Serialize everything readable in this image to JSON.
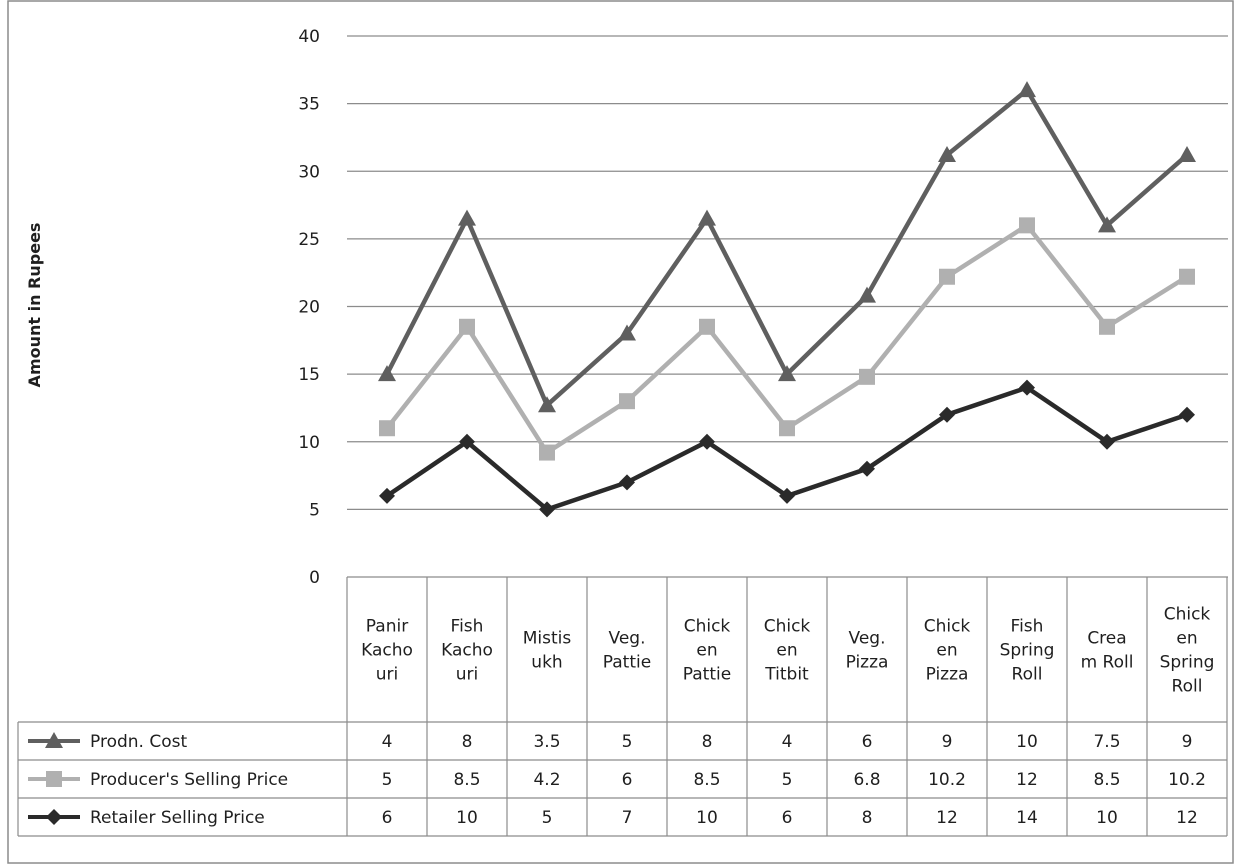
{
  "chart_data": {
    "type": "line",
    "title": "",
    "xlabel": "",
    "ylabel": "Amount in Rupees",
    "ylim": [
      0,
      40
    ],
    "yticks": [
      0,
      5,
      10,
      15,
      20,
      25,
      30,
      35,
      40
    ],
    "grid": true,
    "legend": "data-table",
    "categories": [
      [
        "Panir",
        "Kacho",
        "uri"
      ],
      [
        "Fish",
        "Kacho",
        "uri"
      ],
      [
        "Mistis",
        "ukh"
      ],
      [
        "Veg.",
        "Pattie"
      ],
      [
        "Chick",
        "en",
        "Pattie"
      ],
      [
        "Chick",
        "en",
        "Titbit"
      ],
      [
        "Veg.",
        "Pizza"
      ],
      [
        "Chick",
        "en",
        "Pizza"
      ],
      [
        "Fish",
        "Spring",
        "Roll"
      ],
      [
        "Crea",
        "m Roll"
      ],
      [
        "Chick",
        "en",
        "Spring",
        "Roll"
      ]
    ],
    "series": [
      {
        "name": "Prodn. Cost",
        "marker": "triangle",
        "color": "#5f5f5f",
        "table_values": [
          "4",
          "8",
          "3.5",
          "5",
          "8",
          "4",
          "6",
          "9",
          "10",
          "7.5",
          "9"
        ]
      },
      {
        "name": "Producer's Selling Price",
        "marker": "square",
        "color": "#b0b0b0",
        "table_values": [
          "5",
          "8.5",
          "4.2",
          "6",
          "8.5",
          "5",
          "6.8",
          "10.2",
          "12",
          "8.5",
          "10.2"
        ]
      },
      {
        "name": "Retailer Selling Price",
        "marker": "diamond",
        "color": "#2a2a2a",
        "table_values": [
          "6",
          "10",
          "5",
          "7",
          "10",
          "6",
          "8",
          "12",
          "14",
          "10",
          "12"
        ]
      }
    ],
    "stacked": true,
    "stacked_cumulative": [
      [
        15,
        26.5,
        12.7,
        18,
        26.5,
        15,
        20.8,
        31.2,
        36,
        26,
        31.2
      ],
      [
        11,
        18.5,
        9.2,
        13,
        18.5,
        11,
        14.8,
        22.2,
        26,
        18.5,
        22.2
      ],
      [
        6,
        10,
        5,
        7,
        10,
        6,
        8,
        12,
        14,
        10,
        12
      ]
    ]
  }
}
